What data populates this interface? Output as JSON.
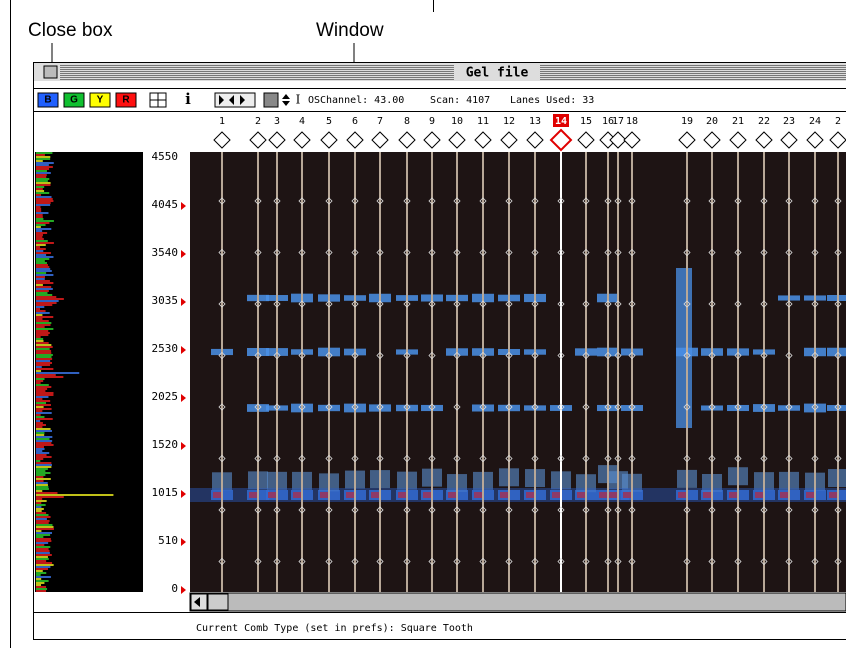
{
  "annotations": {
    "close_box": "Close box",
    "window": "Window"
  },
  "window": {
    "title": "Gel file",
    "toolbar": {
      "color_buttons": [
        "B",
        "G",
        "Y",
        "R"
      ],
      "info_button": "i",
      "cursor_button": "I",
      "os_button": "OS",
      "channel": "Channel: 43.00",
      "scan": "Scan: 4107",
      "lanes_used": "Lanes Used: 33"
    },
    "lanes": [
      "1",
      "2",
      "3",
      "4",
      "5",
      "6",
      "7",
      "8",
      "9",
      "10",
      "11",
      "12",
      "13",
      "14",
      "15",
      "16",
      "17",
      "18",
      "19",
      "20",
      "21",
      "22",
      "23",
      "24",
      "2"
    ],
    "scan_labels": [
      "4550",
      "4045",
      "3540",
      "3035",
      "2530",
      "2025",
      "1520",
      "1015",
      "510",
      "0"
    ],
    "status": "Current Comb Type (set in prefs): Square Tooth"
  }
}
